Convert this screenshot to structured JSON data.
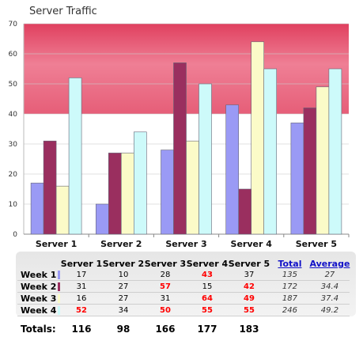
{
  "chart_data": {
    "type": "bar",
    "title": "Server Traffic",
    "categories": [
      "Server 1",
      "Server 2",
      "Server 3",
      "Server 4",
      "Server 5"
    ],
    "ylim": [
      0,
      70
    ],
    "yticks": [
      0,
      10,
      20,
      30,
      40,
      50,
      60,
      70
    ],
    "grid": true,
    "highlight_band": [
      40,
      70
    ],
    "series": [
      {
        "name": "Week 1",
        "color": "#9a9af5",
        "values": [
          17,
          10,
          28,
          43,
          37
        ]
      },
      {
        "name": "Week 2",
        "color": "#9a2f5f",
        "values": [
          31,
          27,
          57,
          15,
          42
        ]
      },
      {
        "name": "Week 3",
        "color": "#fbfbc8",
        "values": [
          16,
          27,
          31,
          64,
          49
        ]
      },
      {
        "name": "Week 4",
        "color": "#cdfafa",
        "values": [
          52,
          34,
          50,
          55,
          55
        ]
      }
    ]
  },
  "table": {
    "headers": [
      "Server 1",
      "Server 2",
      "Server 3",
      "Server 4",
      "Server 5"
    ],
    "total_label": "Total",
    "average_label": "Average",
    "rows": [
      {
        "label": "Week 1",
        "values": [
          "17",
          "10",
          "28",
          "43",
          "37"
        ],
        "total": "135",
        "average": "27"
      },
      {
        "label": "Week 2",
        "values": [
          "31",
          "27",
          "57",
          "15",
          "42"
        ],
        "total": "172",
        "average": "34.4"
      },
      {
        "label": "Week 3",
        "values": [
          "16",
          "27",
          "31",
          "64",
          "49"
        ],
        "total": "187",
        "average": "37.4"
      },
      {
        "label": "Week 4",
        "values": [
          "52",
          "34",
          "50",
          "55",
          "55"
        ],
        "total": "246",
        "average": "49.2"
      }
    ],
    "totals_label": "Totals:",
    "totals": [
      "116",
      "98",
      "166",
      "177",
      "183"
    ]
  }
}
